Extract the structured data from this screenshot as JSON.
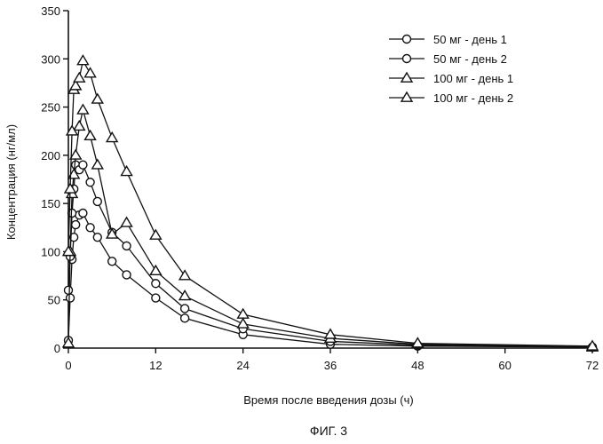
{
  "chart_data": {
    "type": "line",
    "title": "",
    "xlabel": "Время после введения дозы (ч)",
    "ylabel": "Концентрация (нг/мл)",
    "xlim": [
      0,
      72
    ],
    "ylim": [
      0,
      350
    ],
    "xticks": [
      0,
      12,
      24,
      36,
      48,
      60,
      72
    ],
    "yticks": [
      0,
      50,
      100,
      150,
      200,
      250,
      300,
      350
    ],
    "xtick_labels": [
      "0",
      "12",
      "24",
      "36",
      "48",
      "60",
      "72"
    ],
    "ytick_labels": [
      "0",
      "50",
      "100",
      "150",
      "200",
      "250",
      "300",
      "350"
    ],
    "grid": false,
    "legend_position": "top-right",
    "caption": "ФИГ. 3",
    "series": [
      {
        "name": "50 мг - день 1",
        "marker": "circle",
        "x": [
          0,
          0.25,
          0.5,
          0.75,
          1,
          1.5,
          2,
          3,
          4,
          6,
          8,
          12,
          16,
          24,
          36,
          48,
          72
        ],
        "y": [
          8,
          52,
          92,
          115,
          128,
          138,
          140,
          125,
          115,
          90,
          76,
          52,
          31,
          14,
          4,
          2,
          1
        ]
      },
      {
        "name": "50 мг - день 2",
        "marker": "circle",
        "x": [
          0,
          0.25,
          0.5,
          0.75,
          1,
          1.5,
          2,
          3,
          4,
          6,
          8,
          12,
          16,
          24,
          36,
          48,
          72
        ],
        "y": [
          60,
          95,
          140,
          165,
          190,
          185,
          190,
          172,
          152,
          120,
          106,
          67,
          41,
          20,
          7,
          3,
          1
        ]
      },
      {
        "name": "100 мг - день 1",
        "marker": "triangle",
        "x": [
          0,
          0.25,
          0.5,
          0.75,
          1,
          1.5,
          2,
          3,
          4,
          6,
          8,
          12,
          16,
          24,
          36,
          48,
          72
        ],
        "y": [
          5,
          100,
          160,
          180,
          200,
          230,
          247,
          220,
          190,
          118,
          130,
          80,
          54,
          25,
          10,
          4,
          1
        ]
      },
      {
        "name": "100 мг - день 2",
        "marker": "triangle",
        "x": [
          0,
          0.25,
          0.5,
          0.75,
          1,
          1.5,
          2,
          3,
          4,
          6,
          8,
          12,
          16,
          24,
          36,
          48,
          72
        ],
        "y": [
          100,
          165,
          225,
          268,
          272,
          280,
          298,
          285,
          258,
          218,
          183,
          117,
          75,
          35,
          14,
          5,
          2
        ]
      }
    ]
  }
}
